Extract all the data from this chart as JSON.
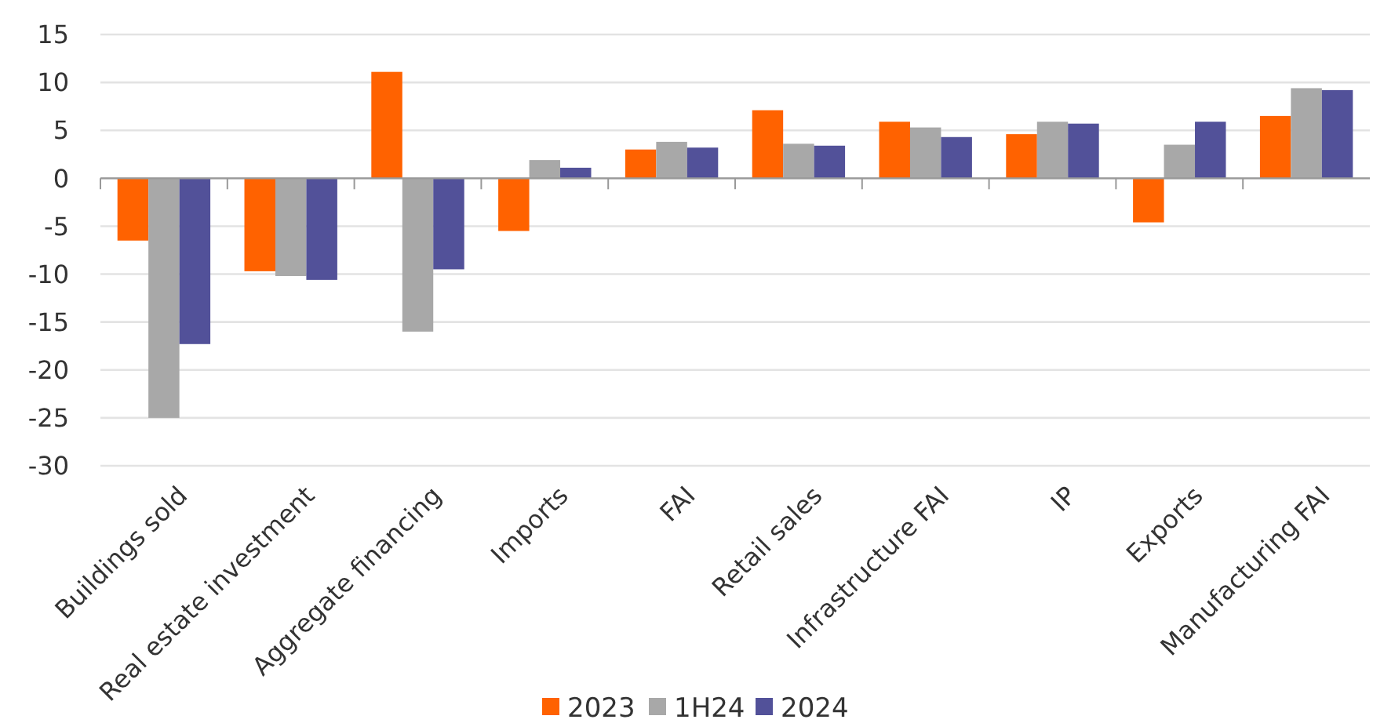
{
  "chart_data": {
    "type": "bar",
    "categories": [
      "Buildings sold",
      "Real estate investment",
      "Aggregate financing",
      "Imports",
      "FAI",
      "Retail sales",
      "Infrastructure FAI",
      "IP",
      "Exports",
      "Manufacturing FAI"
    ],
    "series": [
      {
        "name": "2023",
        "color": "#ff6200",
        "values": [
          -6.5,
          -9.7,
          11.1,
          -5.5,
          3.0,
          7.1,
          5.9,
          4.6,
          -4.6,
          6.5
        ]
      },
      {
        "name": "1H24",
        "color": "#a8a8a8",
        "values": [
          -25,
          -10.2,
          -16.0,
          1.9,
          3.8,
          3.6,
          5.3,
          5.9,
          3.5,
          9.4
        ]
      },
      {
        "name": "2024",
        "color": "#525199",
        "values": [
          -17.3,
          -10.6,
          -9.5,
          1.1,
          3.2,
          3.4,
          4.3,
          5.7,
          5.9,
          9.2
        ]
      }
    ],
    "ylim": [
      -30,
      15
    ],
    "yticks": [
      -30,
      -25,
      -20,
      -15,
      -10,
      -5,
      0,
      5,
      10,
      15
    ],
    "grid": "y",
    "legend": "bottom"
  }
}
